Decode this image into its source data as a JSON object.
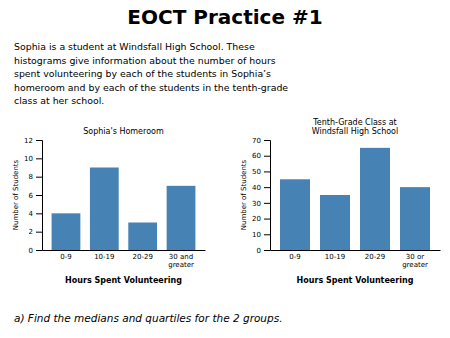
{
  "title": "EOCT Practice #1",
  "annotations": [
    "Sophia is a student at Windsfall High School. These",
    "histograms give information about the number of hours",
    "spent volunteering by each of the students in Sophia’s",
    "homeroom and by each of the students in the tenth-grade",
    "class at her school.",
    "a) Find the medians and quartiles for the 2 groups."
  ],
  "chart_data": [
    {
      "type": "bar",
      "title": "Sophia's Homeroom",
      "categories": [
        "0-9",
        "10-19",
        "20-29",
        "30 and\ngreater"
      ],
      "values": [
        4,
        9,
        3,
        7
      ],
      "xlabel": "Hours Spent Volunteering",
      "ylabel": "Number of Students",
      "ylim": [
        0,
        12
      ],
      "yticks": [
        0,
        2,
        4,
        6,
        8,
        10,
        12
      ]
    },
    {
      "type": "bar",
      "title": "Tenth-Grade Class at\nWindsfall High School",
      "categories": [
        "0-9",
        "10-19",
        "20-29",
        "30 or\ngreater"
      ],
      "values": [
        45,
        35,
        65,
        40
      ],
      "xlabel": "Hours Spent Volunteering",
      "ylabel": "Number of Students",
      "ylim": [
        0,
        70
      ],
      "yticks": [
        0,
        10,
        20,
        30,
        40,
        50,
        60,
        70
      ]
    }
  ]
}
